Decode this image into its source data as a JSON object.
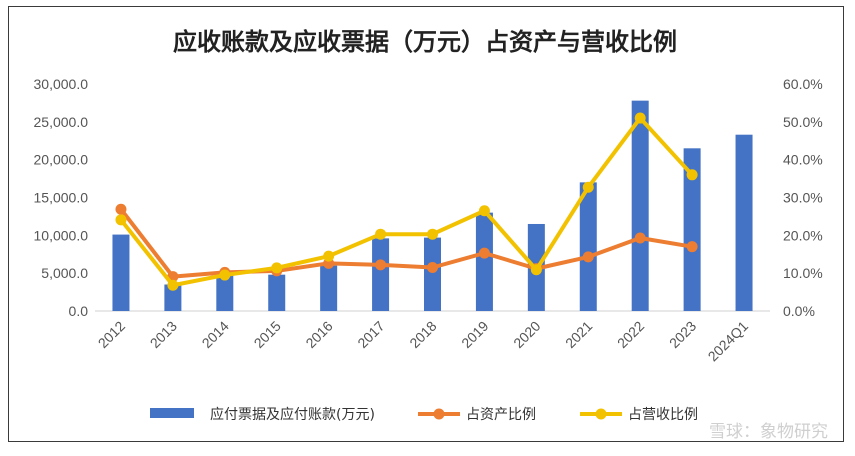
{
  "chart_data": {
    "type": "bar",
    "title": "应收账款及应收票据（万元）占资产与营收比例",
    "categories": [
      "2012",
      "2013",
      "2014",
      "2015",
      "2016",
      "2017",
      "2018",
      "2019",
      "2020",
      "2021",
      "2022",
      "2023",
      "2024Q1"
    ],
    "y_left_ticks": [
      "0.0",
      "5,000.0",
      "10,000.0",
      "15,000.0",
      "20,000.0",
      "25,000.0",
      "30,000.0"
    ],
    "y_right_ticks": [
      "0.0%",
      "10.0%",
      "20.0%",
      "30.0%",
      "40.0%",
      "50.0%",
      "60.0%"
    ],
    "ylim_left": [
      0,
      30000
    ],
    "ylim_right": [
      0,
      60
    ],
    "grid": false,
    "legend_position": "bottom",
    "series": [
      {
        "name": "应付票据及应付账款(万元)",
        "type": "bar",
        "axis": "left",
        "color": "#4472C4",
        "values": [
          10100,
          3500,
          5000,
          4800,
          6000,
          9600,
          9700,
          13000,
          11500,
          17000,
          27800,
          21500,
          23300
        ]
      },
      {
        "name": "占资产比例",
        "type": "line",
        "axis": "right",
        "color": "#ED7D31",
        "values": [
          26.9,
          9.1,
          10.2,
          10.6,
          12.6,
          12.2,
          11.5,
          15.3,
          11.2,
          14.3,
          19.3,
          17.0,
          null
        ]
      },
      {
        "name": "占营收比例",
        "type": "line",
        "axis": "right",
        "color": "#F2C200",
        "values": [
          24.1,
          6.8,
          9.5,
          11.4,
          14.5,
          20.3,
          20.3,
          26.5,
          10.9,
          32.7,
          51.0,
          36.0,
          null
        ]
      }
    ]
  },
  "watermark": "雪球：象物研究"
}
